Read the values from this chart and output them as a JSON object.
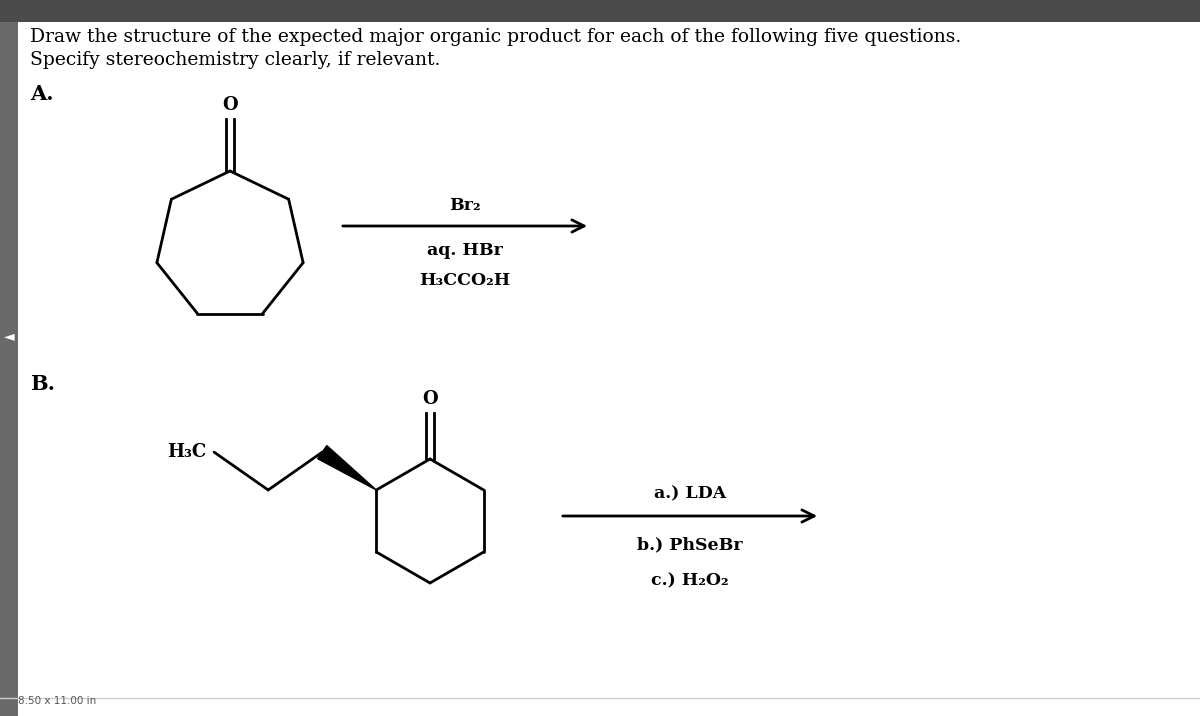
{
  "title_line1": "Draw the structure of the expected major organic product for each of the following five questions.",
  "title_line2": "Specify stereochemistry clearly, if relevant.",
  "label_A": "A.",
  "label_B": "B.",
  "reagents_A_line1": "Br₂",
  "reagents_A_line2": "aq. HBr",
  "reagents_A_line3": "H₃CCO₂H",
  "reagents_B_line1": "a.) LDA",
  "reagents_B_line2": "b.) PhSeBr",
  "reagents_B_line3": "c.) H₂O₂",
  "label_B_mol": "H₃C",
  "oxygen_label": "O",
  "background_color": "#ffffff",
  "toolbar_color": "#4a4a4a",
  "line_color": "#000000",
  "text_color": "#000000",
  "page_size_label": "8.50 x 11.00 in",
  "font_size_title": 13.5,
  "font_size_labels": 15,
  "font_size_reagents": 12.5,
  "font_size_atom": 13
}
